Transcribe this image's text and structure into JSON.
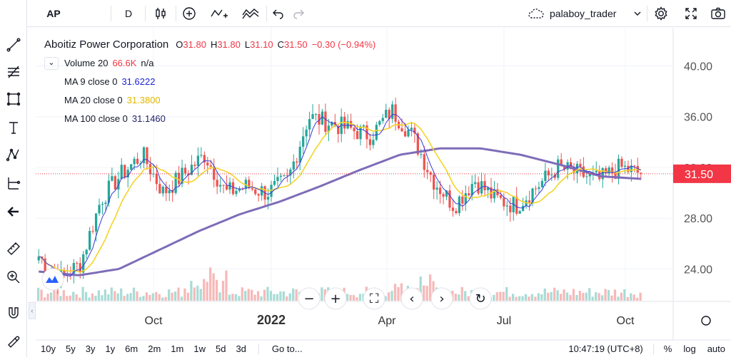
{
  "symbol": {
    "name": "Aboitiz Power Corporation",
    "open_label": "O",
    "open": "31.80",
    "high_label": "H",
    "high": "31.80",
    "low_label": "L",
    "low": "31.10",
    "close_label": "C",
    "close": "31.50",
    "change": "−0.30 (−0.94%)"
  },
  "toolbar": {
    "ticker": "AP",
    "interval": "D",
    "user": "palaboy_trader"
  },
  "indicators": {
    "volume": {
      "label": "Volume 20",
      "value": "66.6K",
      "extra": "n/a"
    },
    "ma9": {
      "label": "MA 9 close 0",
      "value": "31.6222",
      "color": "#1e22d6"
    },
    "ma20": {
      "label": "MA 20 close 0",
      "value": "31.3800",
      "color": "#f1d321"
    },
    "ma100": {
      "label": "MA 100 close 0",
      "value": "31.1460",
      "color": "#22226b"
    }
  },
  "price_axis": {
    "ticks": [
      "40.00",
      "36.00",
      "32.00",
      "28.00",
      "24.00"
    ],
    "last_price": "31.50",
    "last_price_color": "#f23645"
  },
  "time_axis": {
    "labels": [
      "Oct",
      "2022",
      "Apr",
      "Jul",
      "Oct"
    ]
  },
  "bottom_bar": {
    "ranges": [
      "10y",
      "5y",
      "3y",
      "1y",
      "6m",
      "2m",
      "1m",
      "1w",
      "5d",
      "3d"
    ],
    "goto": "Go to...",
    "clock": "10:47:19 (UTC+8)",
    "percent": "%",
    "log": "log",
    "auto": "auto"
  },
  "colors": {
    "up": "#26a69a",
    "down": "#ef5350",
    "ma100": "#7e6cb8",
    "ma20": "#f5d327",
    "ma9": "#3b3bd6"
  },
  "chart_data": {
    "type": "candlestick",
    "x_range": [
      "2021-07",
      "2022-10"
    ],
    "ylim": [
      21.5,
      43.0
    ],
    "x_ticks": [
      "Oct",
      "2022",
      "Apr",
      "Jul",
      "Oct"
    ],
    "y_ticks": [
      24,
      28,
      32,
      36,
      40
    ],
    "close_path": [
      {
        "t": "2021-07",
        "y": 25.0
      },
      {
        "t": "2021-08",
        "y": 23.2
      },
      {
        "t": "2021-08b",
        "y": 24.4
      },
      {
        "t": "2021-09",
        "y": 29.5
      },
      {
        "t": "2021-09b",
        "y": 31.5
      },
      {
        "t": "2021-10",
        "y": 33.0
      },
      {
        "t": "2021-10b",
        "y": 30.0
      },
      {
        "t": "2021-11",
        "y": 31.5
      },
      {
        "t": "2021-11b",
        "y": 33.0
      },
      {
        "t": "2021-12",
        "y": 30.0
      },
      {
        "t": "2021-12b",
        "y": 30.5
      },
      {
        "t": "2022-01",
        "y": 30.0
      },
      {
        "t": "2022-01b",
        "y": 31.0
      },
      {
        "t": "2022-02",
        "y": 36.0
      },
      {
        "t": "2022-02b",
        "y": 35.5
      },
      {
        "t": "2022-03",
        "y": 35.0
      },
      {
        "t": "2022-03b",
        "y": 34.5
      },
      {
        "t": "2022-04",
        "y": 36.5
      },
      {
        "t": "2022-04b",
        "y": 34.5
      },
      {
        "t": "2022-05",
        "y": 31.0
      },
      {
        "t": "2022-05b",
        "y": 29.0
      },
      {
        "t": "2022-06",
        "y": 31.0
      },
      {
        "t": "2022-06b",
        "y": 29.5
      },
      {
        "t": "2022-07",
        "y": 29.0
      },
      {
        "t": "2022-07b",
        "y": 30.5
      },
      {
        "t": "2022-08",
        "y": 32.0
      },
      {
        "t": "2022-08b",
        "y": 31.5
      },
      {
        "t": "2022-09",
        "y": 31.0
      },
      {
        "t": "2022-09b",
        "y": 32.0
      },
      {
        "t": "2022-10",
        "y": 31.5
      }
    ],
    "ma100_path": [
      {
        "t": "2021-07",
        "y": 23.8
      },
      {
        "t": "2021-08",
        "y": 23.5
      },
      {
        "t": "2021-09",
        "y": 24.0
      },
      {
        "t": "2021-10",
        "y": 25.5
      },
      {
        "t": "2021-11",
        "y": 27.0
      },
      {
        "t": "2021-12",
        "y": 28.3
      },
      {
        "t": "2022-01",
        "y": 29.3
      },
      {
        "t": "2022-02",
        "y": 30.5
      },
      {
        "t": "2022-03",
        "y": 31.8
      },
      {
        "t": "2022-04",
        "y": 33.0
      },
      {
        "t": "2022-05",
        "y": 33.5
      },
      {
        "t": "2022-06",
        "y": 33.5
      },
      {
        "t": "2022-07",
        "y": 33.0
      },
      {
        "t": "2022-08",
        "y": 32.2
      },
      {
        "t": "2022-09",
        "y": 31.3
      },
      {
        "t": "2022-10",
        "y": 31.1
      }
    ]
  }
}
